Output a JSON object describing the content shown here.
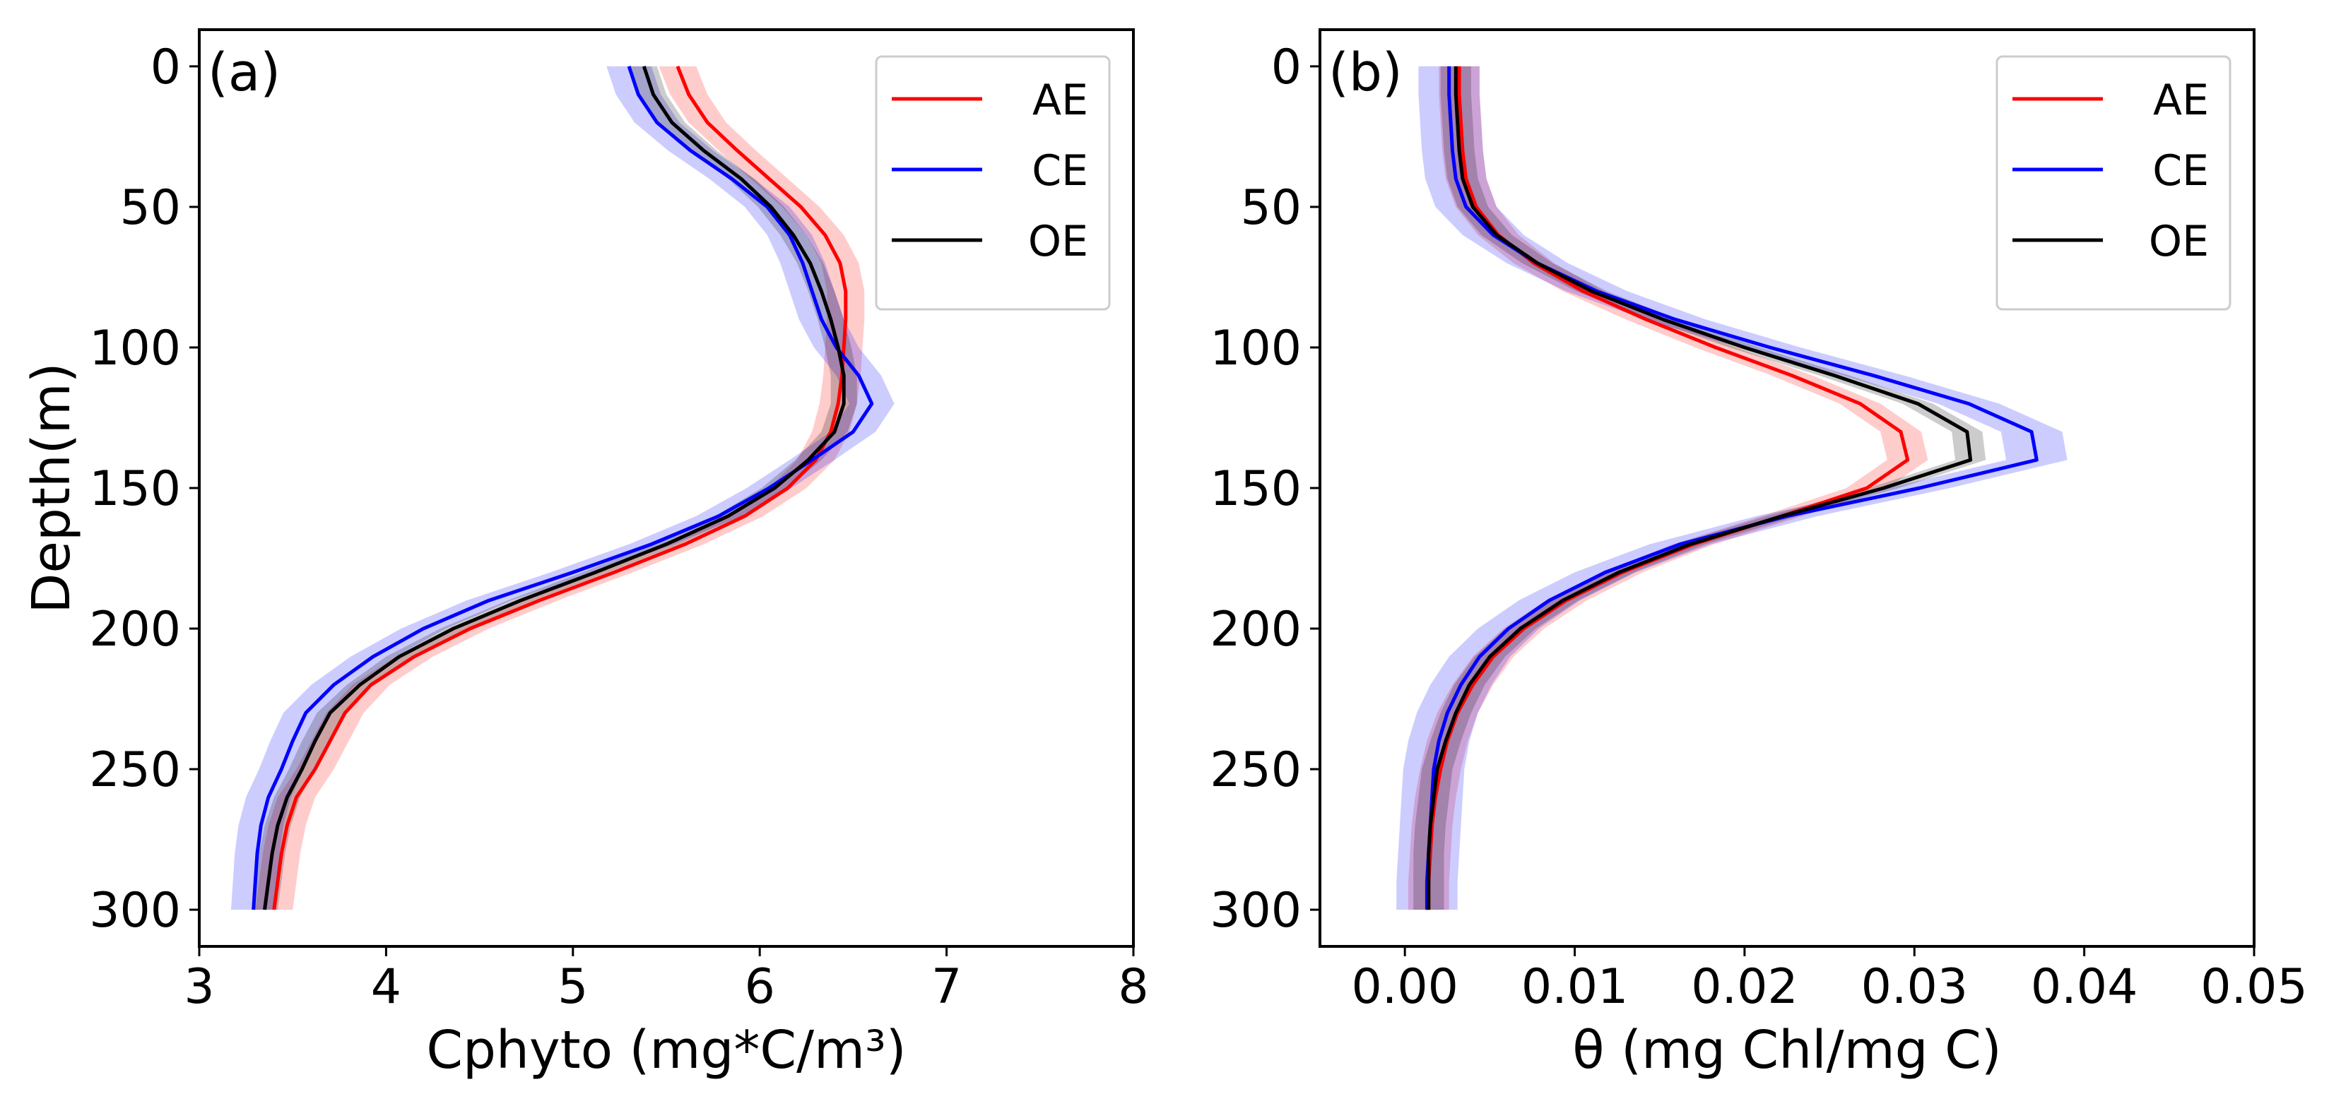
{
  "chart_data": [
    {
      "type": "line",
      "panel_label": "(a)",
      "xlabel": "Cphyto (mg*C/m³)",
      "ylabel": "Depth(m)",
      "xlim": [
        3,
        8
      ],
      "ylim": [
        300,
        0
      ],
      "xticks": [
        "3",
        "4",
        "5",
        "6",
        "7",
        "8"
      ],
      "yticks": [
        "0",
        "50",
        "100",
        "150",
        "200",
        "250",
        "300"
      ],
      "legend_position": "top-right",
      "depth": [
        0,
        10,
        20,
        30,
        40,
        50,
        60,
        70,
        80,
        90,
        100,
        110,
        120,
        130,
        140,
        150,
        160,
        170,
        180,
        190,
        200,
        210,
        220,
        230,
        240,
        250,
        260,
        270,
        280,
        290,
        300
      ],
      "series": [
        {
          "name": "AE",
          "color": "#ff0000",
          "band": 0.1,
          "values": [
            5.56,
            5.62,
            5.72,
            5.88,
            6.05,
            6.22,
            6.35,
            6.43,
            6.46,
            6.46,
            6.45,
            6.44,
            6.42,
            6.38,
            6.3,
            6.15,
            5.92,
            5.6,
            5.22,
            4.82,
            4.45,
            4.15,
            3.92,
            3.78,
            3.7,
            3.62,
            3.52,
            3.47,
            3.44,
            3.42,
            3.4
          ]
        },
        {
          "name": "CE",
          "color": "#0000ff",
          "band": 0.12,
          "values": [
            5.3,
            5.35,
            5.45,
            5.63,
            5.85,
            6.04,
            6.16,
            6.23,
            6.28,
            6.33,
            6.41,
            6.53,
            6.6,
            6.5,
            6.28,
            6.05,
            5.78,
            5.42,
            5.0,
            4.55,
            4.2,
            3.93,
            3.72,
            3.57,
            3.5,
            3.44,
            3.37,
            3.33,
            3.31,
            3.3,
            3.29
          ]
        },
        {
          "name": "OE",
          "color": "#000000",
          "band": 0.07,
          "values": [
            5.38,
            5.43,
            5.53,
            5.7,
            5.9,
            6.06,
            6.18,
            6.27,
            6.33,
            6.38,
            6.42,
            6.45,
            6.45,
            6.4,
            6.26,
            6.08,
            5.83,
            5.5,
            5.12,
            4.72,
            4.36,
            4.07,
            3.86,
            3.7,
            3.62,
            3.55,
            3.47,
            3.42,
            3.39,
            3.37,
            3.35
          ]
        }
      ]
    },
    {
      "type": "line",
      "panel_label": "(b)",
      "xlabel": "θ (mg Chl/mg C)",
      "ylabel": "",
      "xlim": [
        -0.005,
        0.05
      ],
      "ylim": [
        300,
        0
      ],
      "xticks": [
        "0.00",
        "0.01",
        "0.02",
        "0.03",
        "0.04",
        "0.05"
      ],
      "yticks": [
        "0",
        "50",
        "100",
        "150",
        "200",
        "250",
        "300"
      ],
      "legend_position": "top-right",
      "depth": [
        0,
        10,
        20,
        30,
        40,
        50,
        60,
        70,
        80,
        90,
        100,
        110,
        120,
        130,
        140,
        150,
        160,
        170,
        180,
        190,
        200,
        210,
        220,
        230,
        240,
        250,
        260,
        270,
        280,
        290,
        300
      ],
      "series": [
        {
          "name": "AE",
          "color": "#ff0000",
          "band": 0.0012,
          "values": [
            0.0032,
            0.0032,
            0.0033,
            0.0034,
            0.0036,
            0.0042,
            0.0055,
            0.0076,
            0.0105,
            0.0142,
            0.0183,
            0.0228,
            0.0268,
            0.0292,
            0.0296,
            0.0272,
            0.0222,
            0.017,
            0.0128,
            0.0095,
            0.007,
            0.0052,
            0.004,
            0.0031,
            0.0025,
            0.0021,
            0.0018,
            0.0016,
            0.0015,
            0.0014,
            0.0014
          ]
        },
        {
          "name": "CE",
          "color": "#0000ff",
          "band": 0.0018,
          "values": [
            0.0026,
            0.0026,
            0.0027,
            0.0028,
            0.003,
            0.0036,
            0.0052,
            0.0078,
            0.0113,
            0.0159,
            0.0215,
            0.0276,
            0.0332,
            0.0369,
            0.0372,
            0.0303,
            0.0225,
            0.0162,
            0.0118,
            0.0085,
            0.0061,
            0.0044,
            0.0033,
            0.0025,
            0.002,
            0.0017,
            0.0016,
            0.0015,
            0.0014,
            0.0013,
            0.0013
          ]
        },
        {
          "name": "OE",
          "color": "#000000",
          "band": 0.0009,
          "values": [
            0.003,
            0.003,
            0.0031,
            0.0032,
            0.0034,
            0.004,
            0.0054,
            0.0078,
            0.011,
            0.0152,
            0.02,
            0.0253,
            0.0302,
            0.0331,
            0.0333,
            0.0282,
            0.0222,
            0.0168,
            0.0126,
            0.0093,
            0.0068,
            0.005,
            0.0038,
            0.003,
            0.0024,
            0.0019,
            0.0017,
            0.0015,
            0.0014,
            0.0014,
            0.0014
          ]
        }
      ]
    }
  ]
}
